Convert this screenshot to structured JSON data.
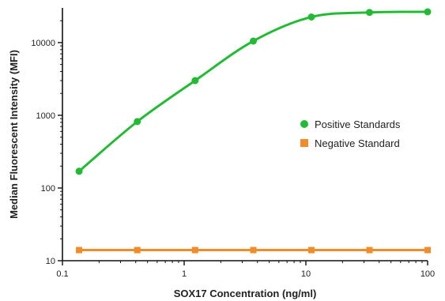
{
  "chart_data": {
    "type": "line",
    "xlabel": "SOX17 Concentration (ng/ml)",
    "ylabel": "Median Fluorescent Intensity (MFI)",
    "x_scale": "log",
    "y_scale": "log",
    "xlim": [
      0.1,
      100
    ],
    "ylim": [
      10,
      30000
    ],
    "x_ticks": [
      0.1,
      1,
      10,
      100
    ],
    "x_tick_labels": [
      "0.1",
      "1",
      "10",
      "100"
    ],
    "y_ticks": [
      10,
      100,
      1000,
      10000
    ],
    "y_tick_labels": [
      "10",
      "100",
      "1000",
      "10000"
    ],
    "grid": false,
    "legend_position": "right",
    "series": [
      {
        "name": "Positive Standards",
        "color": "#22bb33",
        "marker": "circle",
        "x": [
          0.137,
          0.412,
          1.23,
          3.7,
          11.1,
          33.3,
          100
        ],
        "y": [
          170,
          820,
          3000,
          10500,
          22500,
          26000,
          26500
        ]
      },
      {
        "name": "Negative Standard",
        "color": "#f28c28",
        "marker": "square",
        "x": [
          0.137,
          0.412,
          1.23,
          3.7,
          11.1,
          33.3,
          100
        ],
        "y": [
          14,
          14,
          14,
          14,
          14,
          14,
          14
        ]
      }
    ]
  }
}
